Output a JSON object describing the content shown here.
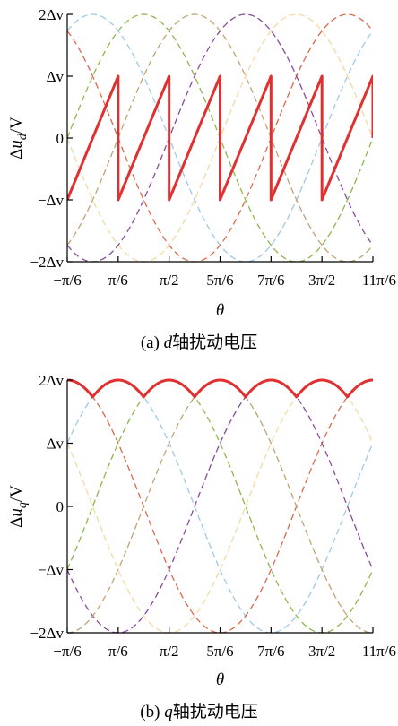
{
  "figure": {
    "colors": {
      "highlight": "#e03030",
      "axis": "#000000",
      "phases": [
        "#8db84a",
        "#9ec9e8",
        "#d86a4a",
        "#f5d9a0",
        "#8a4a9c",
        "#c2a272"
      ]
    }
  },
  "chart_data": [
    {
      "type": "line",
      "caption_prefix": "(a) ",
      "caption_var": "d",
      "caption_text": "轴扰动电压",
      "ylabel_prefix": "Δu",
      "ylabel_sub": "d",
      "ylabel_suffix": "/V",
      "xlabel": "θ",
      "x_unit": "rad",
      "xlim": [
        -0.5236,
        5.7596
      ],
      "ylim": [
        -2,
        2
      ],
      "x_tick_values": [
        -0.5236,
        0.5236,
        1.5708,
        2.618,
        3.6652,
        4.7124,
        5.7596
      ],
      "x_tick_labels": [
        "−π/6",
        "π/6",
        "π/2",
        "5π/6",
        "7π/6",
        "3π/2",
        "11π/6"
      ],
      "y_tick_values": [
        -2,
        -1,
        0,
        1,
        2
      ],
      "y_tick_labels": [
        "−2Δv",
        "−Δv",
        "0",
        "Δv",
        "2Δv"
      ],
      "y_unit": "Δv",
      "phase_curves": [
        {
          "amplitude": 2,
          "phase_deg": 30
        },
        {
          "amplitude": 2,
          "phase_deg": 90
        },
        {
          "amplitude": 2,
          "phase_deg": 150
        },
        {
          "amplitude": 2,
          "phase_deg": 210
        },
        {
          "amplitude": 2,
          "phase_deg": 270
        },
        {
          "amplitude": 2,
          "phase_deg": 330
        }
      ],
      "highlight_series": {
        "description": "sawtooth",
        "x": [
          -0.5236,
          0.5236,
          0.5236,
          1.5708,
          1.5708,
          2.618,
          2.618,
          3.6652,
          3.6652,
          4.7124,
          4.7124,
          5.7596,
          5.7596
        ],
        "y": [
          -1,
          1,
          -1,
          1,
          -1,
          1,
          -1,
          1,
          -1,
          1,
          -1,
          1,
          0
        ]
      }
    },
    {
      "type": "line",
      "caption_prefix": "(b) ",
      "caption_var": "q",
      "caption_text": "轴扰动电压",
      "ylabel_prefix": "Δu",
      "ylabel_sub": "q",
      "ylabel_suffix": "/V",
      "xlabel": "θ",
      "x_unit": "rad",
      "xlim": [
        -0.5236,
        5.7596
      ],
      "ylim": [
        -2,
        2
      ],
      "x_tick_values": [
        -0.5236,
        0.5236,
        1.5708,
        2.618,
        3.6652,
        4.7124,
        5.7596
      ],
      "x_tick_labels": [
        "−π/6",
        "π/6",
        "π/2",
        "5π/6",
        "7π/6",
        "3π/2",
        "11π/6"
      ],
      "y_tick_values": [
        -2,
        -1,
        0,
        1,
        2
      ],
      "y_tick_labels": [
        "−2Δv",
        "−Δv",
        "0",
        "Δv",
        "2Δv"
      ],
      "y_unit": "Δv",
      "phase_curves": [
        {
          "amplitude": 2,
          "phase_deg": 0
        },
        {
          "amplitude": 2,
          "phase_deg": 60
        },
        {
          "amplitude": 2,
          "phase_deg": 120
        },
        {
          "amplitude": 2,
          "phase_deg": 180
        },
        {
          "amplitude": 2,
          "phase_deg": 240
        },
        {
          "amplitude": 2,
          "phase_deg": 300
        }
      ],
      "highlight_series": {
        "description": "upper envelope",
        "function": "max of phase curves",
        "min_value": 1.732,
        "max_value": 2
      }
    }
  ]
}
